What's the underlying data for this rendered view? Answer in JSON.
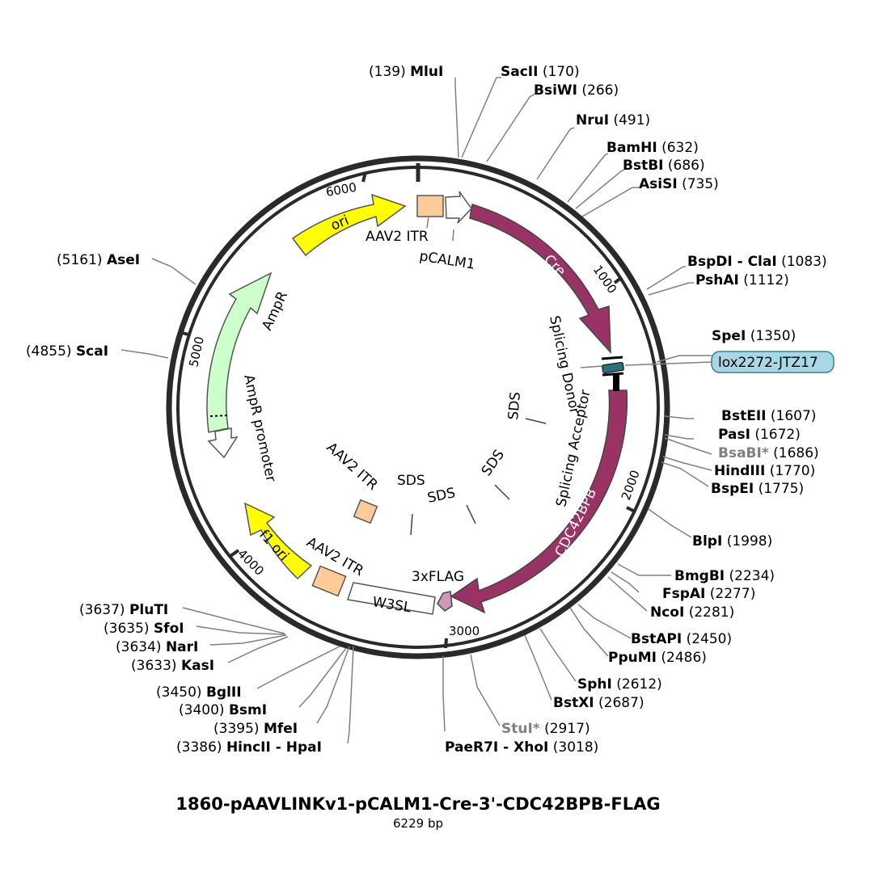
{
  "title": "1860-pAAVLINKv1-pCALM1-Cre-3'-CDC42BPB-FLAG",
  "length_label": "6229 bp",
  "tick_labels": [
    "1000",
    "2000",
    "3000",
    "4000",
    "5000",
    "6000"
  ],
  "enzymes": [
    {
      "name": "MluI",
      "pos": "(139)"
    },
    {
      "name": "SacII",
      "pos": "(170)"
    },
    {
      "name": "BsiWI",
      "pos": "(266)"
    },
    {
      "name": "NruI",
      "pos": "(491)"
    },
    {
      "name": "BamHI",
      "pos": "(632)"
    },
    {
      "name": "BstBI",
      "pos": "(686)"
    },
    {
      "name": "AsiSI",
      "pos": "(735)"
    },
    {
      "name": "BspDI - ClaI",
      "pos": "(1083)"
    },
    {
      "name": "PshAI",
      "pos": "(1112)"
    },
    {
      "name": "SpeI",
      "pos": "(1350)"
    },
    {
      "name": "BstEII",
      "pos": "(1607)"
    },
    {
      "name": "PasI",
      "pos": "(1672)"
    },
    {
      "name": "BsaBI*",
      "pos": "(1686)"
    },
    {
      "name": "HindIII",
      "pos": "(1770)"
    },
    {
      "name": "BspEI",
      "pos": "(1775)"
    },
    {
      "name": "BlpI",
      "pos": "(1998)"
    },
    {
      "name": "BmgBI",
      "pos": "(2234)"
    },
    {
      "name": "FspAI",
      "pos": "(2277)"
    },
    {
      "name": "NcoI",
      "pos": "(2281)"
    },
    {
      "name": "BstAPI",
      "pos": "(2450)"
    },
    {
      "name": "PpuMI",
      "pos": "(2486)"
    },
    {
      "name": "SphI",
      "pos": "(2612)"
    },
    {
      "name": "BstXI",
      "pos": "(2687)"
    },
    {
      "name": "StuI*",
      "pos": "(2917)"
    },
    {
      "name": "PaeR7I - XhoI",
      "pos": "(3018)"
    },
    {
      "name": "HincII - HpaI",
      "pos": "(3386)"
    },
    {
      "name": "MfeI",
      "pos": "(3395)"
    },
    {
      "name": "BsmI",
      "pos": "(3400)"
    },
    {
      "name": "BglII",
      "pos": "(3450)"
    },
    {
      "name": "KasI",
      "pos": "(3633)"
    },
    {
      "name": "NarI",
      "pos": "(3634)"
    },
    {
      "name": "SfoI",
      "pos": "(3635)"
    },
    {
      "name": "PluTI",
      "pos": "(3637)"
    },
    {
      "name": "ScaI",
      "pos": "(4855)"
    },
    {
      "name": "AseI",
      "pos": "(5161)"
    }
  ],
  "features": {
    "cre": "Cre",
    "cdc42bpb": "CDC42BPB",
    "ori": "ori",
    "ampr": "AmpR",
    "f1ori": "f1 ori",
    "ampr_promoter": "AmpR promoter",
    "aav2_itr_top": "AAV2 ITR",
    "aav2_itr_bottom": "AAV2 ITR",
    "aav2_itr_inner": "AAV2 ITR",
    "pcalm1": "pCALM1",
    "splicing_donor": "Splicing Donor",
    "splicing_acceptor": "Splicing Acceptor",
    "sds1": "SDS",
    "sds2": "SDS",
    "sds3": "SDS",
    "sds4": "SDS",
    "flag": "3xFLAG",
    "w3sl": "W3SL",
    "lox": "lox2272-JTZ17"
  },
  "colors": {
    "backbone": "#2a2a2a",
    "cre": "#993366",
    "cdc42bpb": "#993366",
    "ori": "#ffff00",
    "f1ori": "#ffff00",
    "ampr": "#ccffcc",
    "itr": "#ffcc99",
    "flag": "#cc99bb",
    "lox_fill": "#a8d8e6",
    "lox_marker": "#2d6f7f",
    "line": "#808080",
    "grey_enzyme": "#808080"
  }
}
